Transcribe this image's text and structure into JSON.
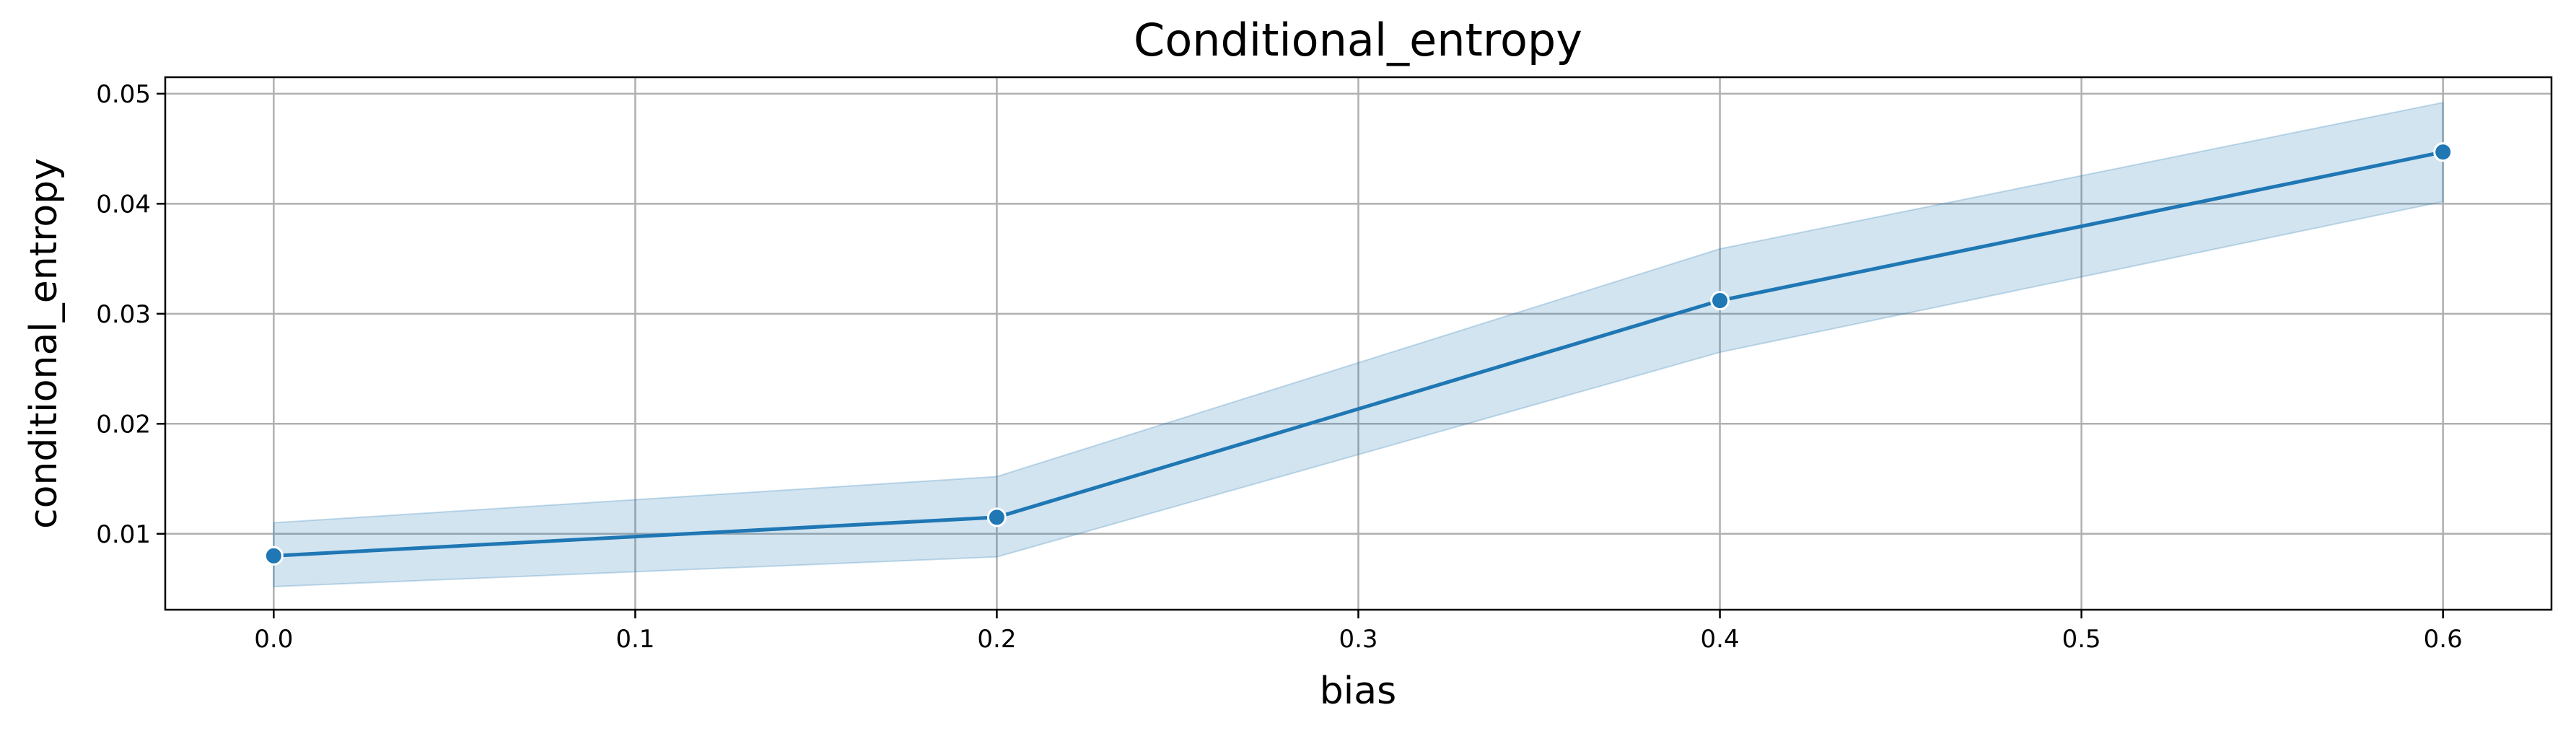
{
  "chart_data": {
    "type": "line",
    "title": "Conditional_entropy",
    "xlabel": "bias",
    "ylabel": "conditional_entropy",
    "xlim": [
      -0.03,
      0.63
    ],
    "ylim": [
      0.0031,
      0.0515
    ],
    "x_ticks": [
      0.0,
      0.1,
      0.2,
      0.3,
      0.4,
      0.5,
      0.6
    ],
    "x_tick_labels": [
      "0.0",
      "0.1",
      "0.2",
      "0.3",
      "0.4",
      "0.5",
      "0.6"
    ],
    "y_ticks": [
      0.01,
      0.02,
      0.03,
      0.04,
      0.05
    ],
    "y_tick_labels": [
      "0.01",
      "0.02",
      "0.03",
      "0.04",
      "0.05"
    ],
    "grid": true,
    "series": [
      {
        "x": [
          0.0,
          0.2,
          0.4,
          0.6
        ],
        "y": [
          0.008,
          0.0115,
          0.0312,
          0.0447
        ],
        "ci_lower": [
          0.0052,
          0.0079,
          0.0265,
          0.0402
        ],
        "ci_upper": [
          0.011,
          0.0152,
          0.0359,
          0.0492
        ],
        "color": "#1f77b4",
        "band_color": "#1f77b4",
        "marker": "circle"
      }
    ]
  }
}
